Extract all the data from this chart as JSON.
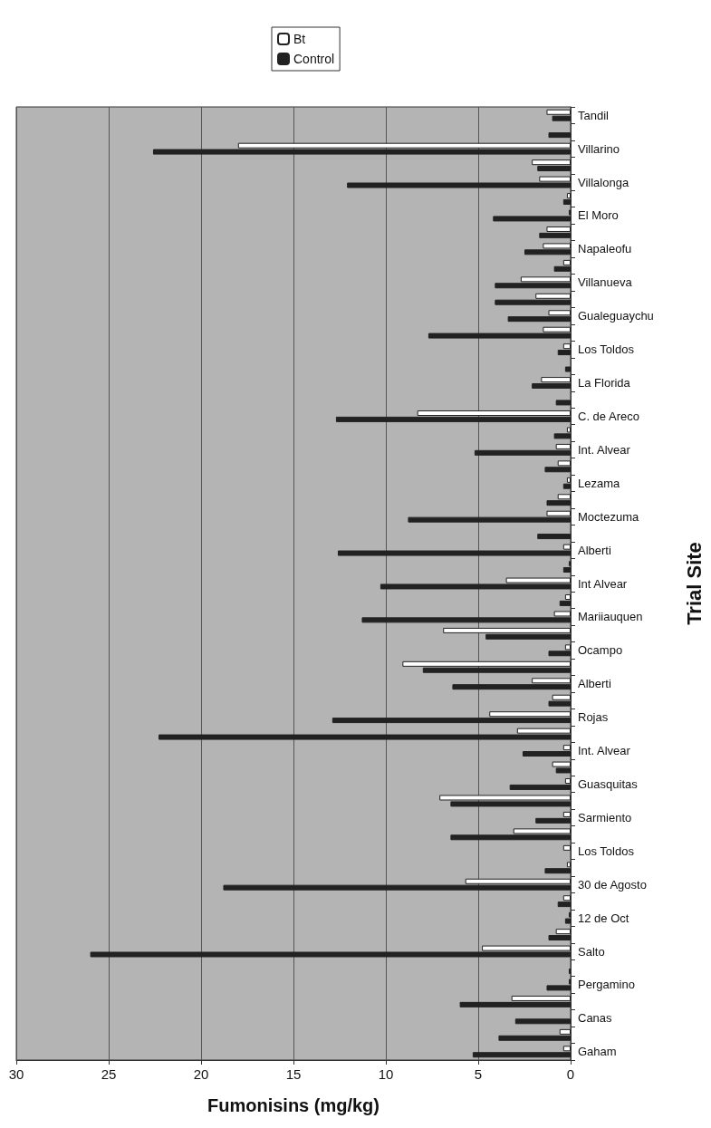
{
  "chart_data": {
    "type": "bar",
    "orientation": "horizontal",
    "xlabel": "Fumonisins (mg/kg)",
    "ylabel": "Trial Site",
    "categories": [
      "Tandil",
      null,
      "Villarino",
      null,
      "Villalonga",
      null,
      "El Moro",
      null,
      "Napaleofu",
      null,
      "Villanueva",
      null,
      "Gualeguaychu",
      null,
      "Los Toldos",
      null,
      "La Florida",
      null,
      "C. de Areco",
      null,
      "Int. Alvear",
      null,
      "Lezama",
      null,
      "Moctezuma",
      null,
      "Alberti",
      null,
      "Int Alvear",
      null,
      "Mariiauquen",
      null,
      "Ocampo",
      null,
      "Alberti",
      null,
      "Rojas",
      null,
      "Int. Alvear",
      null,
      "Guasquitas",
      null,
      "Sarmiento",
      null,
      "Los Toldos",
      null,
      "30 de Agosto",
      null,
      "12 de Oct",
      null,
      "Salto",
      null,
      "Pergamino",
      null,
      "Canas",
      null,
      "Gaham"
    ],
    "series": [
      {
        "name": "Bt",
        "color": "#ffffff",
        "values": [
          1.3,
          0,
          18.0,
          2.1,
          1.7,
          0.2,
          0.1,
          1.3,
          1.5,
          0.4,
          2.7,
          1.9,
          1.2,
          1.5,
          0.4,
          0,
          1.6,
          0,
          8.3,
          0.2,
          0.8,
          0.7,
          0.2,
          0.7,
          1.3,
          0,
          0.4,
          0.1,
          3.5,
          0.3,
          0.9,
          6.9,
          0.3,
          9.1,
          2.1,
          1.0,
          4.4,
          2.9,
          0.4,
          1.0,
          0.3,
          7.1,
          0.4,
          3.1,
          0.4,
          0.2,
          5.7,
          0.4,
          0.1,
          0.8,
          4.8,
          0,
          0.1,
          3.2,
          0,
          0.6,
          0.4
        ]
      },
      {
        "name": "Control",
        "color": "#222222",
        "values": [
          1.0,
          1.2,
          22.6,
          1.8,
          12.1,
          0.4,
          4.2,
          1.7,
          2.5,
          0.9,
          4.1,
          4.1,
          3.4,
          7.7,
          0.7,
          0.3,
          2.1,
          0.8,
          12.7,
          0.9,
          5.2,
          1.4,
          0.4,
          1.3,
          8.8,
          1.8,
          12.6,
          0.4,
          10.3,
          0.6,
          11.3,
          4.6,
          1.2,
          8.0,
          6.4,
          1.2,
          12.9,
          22.3,
          2.6,
          0.8,
          3.3,
          6.5,
          1.9,
          6.5,
          0,
          1.4,
          18.8,
          0.7,
          0.3,
          1.2,
          26.0,
          0.1,
          1.3,
          6.0,
          3.0,
          3.9,
          5.3
        ]
      }
    ],
    "xlim": [
      30,
      0
    ],
    "xticks": [
      0,
      5,
      10,
      15,
      20,
      25,
      30
    ],
    "grid": "x",
    "legend": "top"
  }
}
